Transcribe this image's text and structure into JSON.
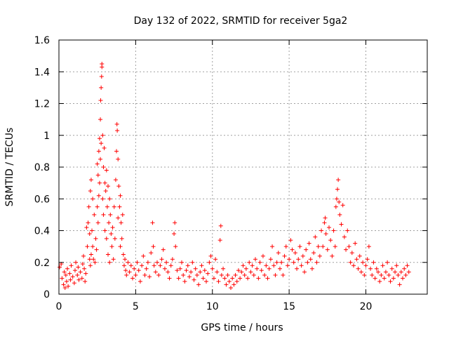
{
  "chart_data": {
    "type": "scatter",
    "title": "Day 132 of 2022, SRMTID for receiver 5ga2",
    "xlabel": "GPS time / hours",
    "ylabel": "SRMTID / TECUs",
    "xlim": [
      0,
      24
    ],
    "ylim": [
      0,
      1.6
    ],
    "xticks": [
      0,
      5,
      10,
      15,
      20
    ],
    "xtick_labels": [
      "0",
      "5",
      "10",
      "15",
      "20"
    ],
    "yticks": [
      0,
      0.2,
      0.4,
      0.6,
      0.8,
      1,
      1.2,
      1.4,
      1.6
    ],
    "ytick_labels": [
      "0",
      "0.2",
      "0.4",
      "0.6",
      "0.8",
      "1",
      "1.2",
      "1.4",
      "1.6"
    ],
    "grid": true,
    "marker": "+",
    "marker_color": "#ff0000",
    "series": [
      {
        "name": "SRMTID",
        "points": [
          [
            0.05,
            0.17
          ],
          [
            0.15,
            0.19
          ],
          [
            0.2,
            0.1
          ],
          [
            0.3,
            0.06
          ],
          [
            0.35,
            0.14
          ],
          [
            0.4,
            0.04
          ],
          [
            0.45,
            0.12
          ],
          [
            0.5,
            0.08
          ],
          [
            0.55,
            0.16
          ],
          [
            0.6,
            0.05
          ],
          [
            0.7,
            0.13
          ],
          [
            0.75,
            0.09
          ],
          [
            0.8,
            0.18
          ],
          [
            0.9,
            0.11
          ],
          [
            1.0,
            0.07
          ],
          [
            1.05,
            0.15
          ],
          [
            1.1,
            0.2
          ],
          [
            1.2,
            0.12
          ],
          [
            1.25,
            0.17
          ],
          [
            1.3,
            0.09
          ],
          [
            1.4,
            0.14
          ],
          [
            1.5,
            0.1
          ],
          [
            1.55,
            0.19
          ],
          [
            1.6,
            0.24
          ],
          [
            1.65,
            0.16
          ],
          [
            1.7,
            0.08
          ],
          [
            1.75,
            0.13
          ],
          [
            1.8,
            0.42
          ],
          [
            1.85,
            0.3
          ],
          [
            1.9,
            0.45
          ],
          [
            1.95,
            0.55
          ],
          [
            2.0,
            0.38
          ],
          [
            2.0,
            0.22
          ],
          [
            2.05,
            0.65
          ],
          [
            2.05,
            0.18
          ],
          [
            2.1,
            0.72
          ],
          [
            2.1,
            0.25
          ],
          [
            2.15,
            0.4
          ],
          [
            2.2,
            0.6
          ],
          [
            2.2,
            0.3
          ],
          [
            2.25,
            0.22
          ],
          [
            2.3,
            0.5
          ],
          [
            2.35,
            0.2
          ],
          [
            2.4,
            0.35
          ],
          [
            2.45,
            0.28
          ],
          [
            2.5,
            0.82
          ],
          [
            2.5,
            0.55
          ],
          [
            2.55,
            0.75
          ],
          [
            2.55,
            0.45
          ],
          [
            2.6,
            0.9
          ],
          [
            2.6,
            0.62
          ],
          [
            2.65,
            0.98
          ],
          [
            2.65,
            0.7
          ],
          [
            2.7,
            1.1
          ],
          [
            2.7,
            0.85
          ],
          [
            2.72,
            1.22
          ],
          [
            2.75,
            1.3
          ],
          [
            2.75,
            0.95
          ],
          [
            2.78,
            1.37
          ],
          [
            2.8,
            1.43
          ],
          [
            2.8,
            1.45
          ],
          [
            2.85,
            1.0
          ],
          [
            2.85,
            0.6
          ],
          [
            2.9,
            0.8
          ],
          [
            2.9,
            0.5
          ],
          [
            2.95,
            0.92
          ],
          [
            3.0,
            0.7
          ],
          [
            3.0,
            0.4
          ],
          [
            3.05,
            0.65
          ],
          [
            3.1,
            0.78
          ],
          [
            3.1,
            0.35
          ],
          [
            3.15,
            0.55
          ],
          [
            3.2,
            0.68
          ],
          [
            3.2,
            0.25
          ],
          [
            3.25,
            0.45
          ],
          [
            3.3,
            0.6
          ],
          [
            3.3,
            0.2
          ],
          [
            3.35,
            0.5
          ],
          [
            3.4,
            0.38
          ],
          [
            3.45,
            0.3
          ],
          [
            3.5,
            0.42
          ],
          [
            3.55,
            0.22
          ],
          [
            3.6,
            0.55
          ],
          [
            3.65,
            0.35
          ],
          [
            3.7,
            0.72
          ],
          [
            3.75,
            0.9
          ],
          [
            3.78,
            1.07
          ],
          [
            3.8,
            1.03
          ],
          [
            3.85,
            0.85
          ],
          [
            3.85,
            0.48
          ],
          [
            3.9,
            0.68
          ],
          [
            3.95,
            0.55
          ],
          [
            4.0,
            0.62
          ],
          [
            4.0,
            0.3
          ],
          [
            4.05,
            0.45
          ],
          [
            4.1,
            0.35
          ],
          [
            4.15,
            0.5
          ],
          [
            4.2,
            0.25
          ],
          [
            4.25,
            0.18
          ],
          [
            4.3,
            0.22
          ],
          [
            4.35,
            0.15
          ],
          [
            4.4,
            0.12
          ],
          [
            4.5,
            0.2
          ],
          [
            4.6,
            0.14
          ],
          [
            4.7,
            0.18
          ],
          [
            4.8,
            0.1
          ],
          [
            4.9,
            0.16
          ],
          [
            5.0,
            0.12
          ],
          [
            5.1,
            0.2
          ],
          [
            5.2,
            0.15
          ],
          [
            5.3,
            0.08
          ],
          [
            5.4,
            0.18
          ],
          [
            5.5,
            0.24
          ],
          [
            5.6,
            0.12
          ],
          [
            5.7,
            0.16
          ],
          [
            5.8,
            0.2
          ],
          [
            5.9,
            0.11
          ],
          [
            6.0,
            0.26
          ],
          [
            6.1,
            0.45
          ],
          [
            6.15,
            0.3
          ],
          [
            6.2,
            0.18
          ],
          [
            6.3,
            0.14
          ],
          [
            6.4,
            0.2
          ],
          [
            6.5,
            0.12
          ],
          [
            6.6,
            0.18
          ],
          [
            6.7,
            0.22
          ],
          [
            6.8,
            0.28
          ],
          [
            6.9,
            0.16
          ],
          [
            7.0,
            0.2
          ],
          [
            7.1,
            0.14
          ],
          [
            7.2,
            0.1
          ],
          [
            7.3,
            0.18
          ],
          [
            7.4,
            0.22
          ],
          [
            7.5,
            0.38
          ],
          [
            7.55,
            0.45
          ],
          [
            7.6,
            0.3
          ],
          [
            7.7,
            0.15
          ],
          [
            7.8,
            0.1
          ],
          [
            7.9,
            0.16
          ],
          [
            8.0,
            0.2
          ],
          [
            8.1,
            0.12
          ],
          [
            8.2,
            0.08
          ],
          [
            8.3,
            0.15
          ],
          [
            8.4,
            0.18
          ],
          [
            8.5,
            0.11
          ],
          [
            8.6,
            0.14
          ],
          [
            8.7,
            0.2
          ],
          [
            8.8,
            0.09
          ],
          [
            8.9,
            0.16
          ],
          [
            9.0,
            0.12
          ],
          [
            9.1,
            0.06
          ],
          [
            9.2,
            0.14
          ],
          [
            9.3,
            0.18
          ],
          [
            9.4,
            0.1
          ],
          [
            9.5,
            0.15
          ],
          [
            9.6,
            0.08
          ],
          [
            9.7,
            0.13
          ],
          [
            9.8,
            0.2
          ],
          [
            9.9,
            0.24
          ],
          [
            10.0,
            0.16
          ],
          [
            10.1,
            0.1
          ],
          [
            10.2,
            0.22
          ],
          [
            10.3,
            0.14
          ],
          [
            10.4,
            0.08
          ],
          [
            10.5,
            0.34
          ],
          [
            10.55,
            0.43
          ],
          [
            10.6,
            0.12
          ],
          [
            10.7,
            0.16
          ],
          [
            10.8,
            0.1
          ],
          [
            10.9,
            0.06
          ],
          [
            11.0,
            0.12
          ],
          [
            11.1,
            0.08
          ],
          [
            11.2,
            0.04
          ],
          [
            11.3,
            0.1
          ],
          [
            11.4,
            0.06
          ],
          [
            11.5,
            0.12
          ],
          [
            11.6,
            0.08
          ],
          [
            11.7,
            0.15
          ],
          [
            11.8,
            0.1
          ],
          [
            11.9,
            0.14
          ],
          [
            12.0,
            0.18
          ],
          [
            12.1,
            0.12
          ],
          [
            12.2,
            0.16
          ],
          [
            12.3,
            0.1
          ],
          [
            12.4,
            0.2
          ],
          [
            12.5,
            0.14
          ],
          [
            12.6,
            0.18
          ],
          [
            12.7,
            0.12
          ],
          [
            12.8,
            0.22
          ],
          [
            12.9,
            0.16
          ],
          [
            13.0,
            0.1
          ],
          [
            13.1,
            0.2
          ],
          [
            13.2,
            0.15
          ],
          [
            13.3,
            0.24
          ],
          [
            13.4,
            0.12
          ],
          [
            13.5,
            0.18
          ],
          [
            13.6,
            0.1
          ],
          [
            13.7,
            0.16
          ],
          [
            13.8,
            0.22
          ],
          [
            13.9,
            0.3
          ],
          [
            14.0,
            0.18
          ],
          [
            14.1,
            0.12
          ],
          [
            14.2,
            0.2
          ],
          [
            14.3,
            0.26
          ],
          [
            14.4,
            0.16
          ],
          [
            14.5,
            0.2
          ],
          [
            14.6,
            0.12
          ],
          [
            14.7,
            0.24
          ],
          [
            14.8,
            0.3
          ],
          [
            14.9,
            0.18
          ],
          [
            15.0,
            0.22
          ],
          [
            15.1,
            0.34
          ],
          [
            15.2,
            0.28
          ],
          [
            15.3,
            0.2
          ],
          [
            15.4,
            0.26
          ],
          [
            15.5,
            0.16
          ],
          [
            15.6,
            0.22
          ],
          [
            15.7,
            0.3
          ],
          [
            15.8,
            0.18
          ],
          [
            15.9,
            0.24
          ],
          [
            16.0,
            0.14
          ],
          [
            16.1,
            0.28
          ],
          [
            16.2,
            0.2
          ],
          [
            16.3,
            0.32
          ],
          [
            16.4,
            0.22
          ],
          [
            16.5,
            0.16
          ],
          [
            16.6,
            0.26
          ],
          [
            16.7,
            0.36
          ],
          [
            16.8,
            0.2
          ],
          [
            16.9,
            0.3
          ],
          [
            17.0,
            0.24
          ],
          [
            17.1,
            0.4
          ],
          [
            17.2,
            0.3
          ],
          [
            17.3,
            0.45
          ],
          [
            17.35,
            0.48
          ],
          [
            17.4,
            0.38
          ],
          [
            17.5,
            0.28
          ],
          [
            17.6,
            0.42
          ],
          [
            17.7,
            0.34
          ],
          [
            17.8,
            0.24
          ],
          [
            17.9,
            0.4
          ],
          [
            18.0,
            0.3
          ],
          [
            18.05,
            0.55
          ],
          [
            18.1,
            0.6
          ],
          [
            18.15,
            0.66
          ],
          [
            18.2,
            0.72
          ],
          [
            18.25,
            0.58
          ],
          [
            18.3,
            0.5
          ],
          [
            18.4,
            0.44
          ],
          [
            18.5,
            0.56
          ],
          [
            18.6,
            0.36
          ],
          [
            18.7,
            0.28
          ],
          [
            18.8,
            0.4
          ],
          [
            18.9,
            0.3
          ],
          [
            19.0,
            0.2
          ],
          [
            19.1,
            0.26
          ],
          [
            19.2,
            0.18
          ],
          [
            19.3,
            0.32
          ],
          [
            19.4,
            0.22
          ],
          [
            19.5,
            0.16
          ],
          [
            19.6,
            0.24
          ],
          [
            19.7,
            0.14
          ],
          [
            19.8,
            0.2
          ],
          [
            19.9,
            0.12
          ],
          [
            20.0,
            0.18
          ],
          [
            20.1,
            0.22
          ],
          [
            20.2,
            0.3
          ],
          [
            20.3,
            0.16
          ],
          [
            20.4,
            0.12
          ],
          [
            20.5,
            0.2
          ],
          [
            20.6,
            0.1
          ],
          [
            20.7,
            0.16
          ],
          [
            20.8,
            0.14
          ],
          [
            20.9,
            0.08
          ],
          [
            21.0,
            0.12
          ],
          [
            21.1,
            0.18
          ],
          [
            21.2,
            0.1
          ],
          [
            21.3,
            0.14
          ],
          [
            21.4,
            0.2
          ],
          [
            21.5,
            0.12
          ],
          [
            21.6,
            0.08
          ],
          [
            21.7,
            0.16
          ],
          [
            21.8,
            0.1
          ],
          [
            21.9,
            0.14
          ],
          [
            22.0,
            0.18
          ],
          [
            22.1,
            0.12
          ],
          [
            22.2,
            0.06
          ],
          [
            22.3,
            0.14
          ],
          [
            22.4,
            0.1
          ],
          [
            22.5,
            0.16
          ],
          [
            22.6,
            0.12
          ],
          [
            22.7,
            0.18
          ],
          [
            22.8,
            0.14
          ]
        ]
      }
    ]
  }
}
